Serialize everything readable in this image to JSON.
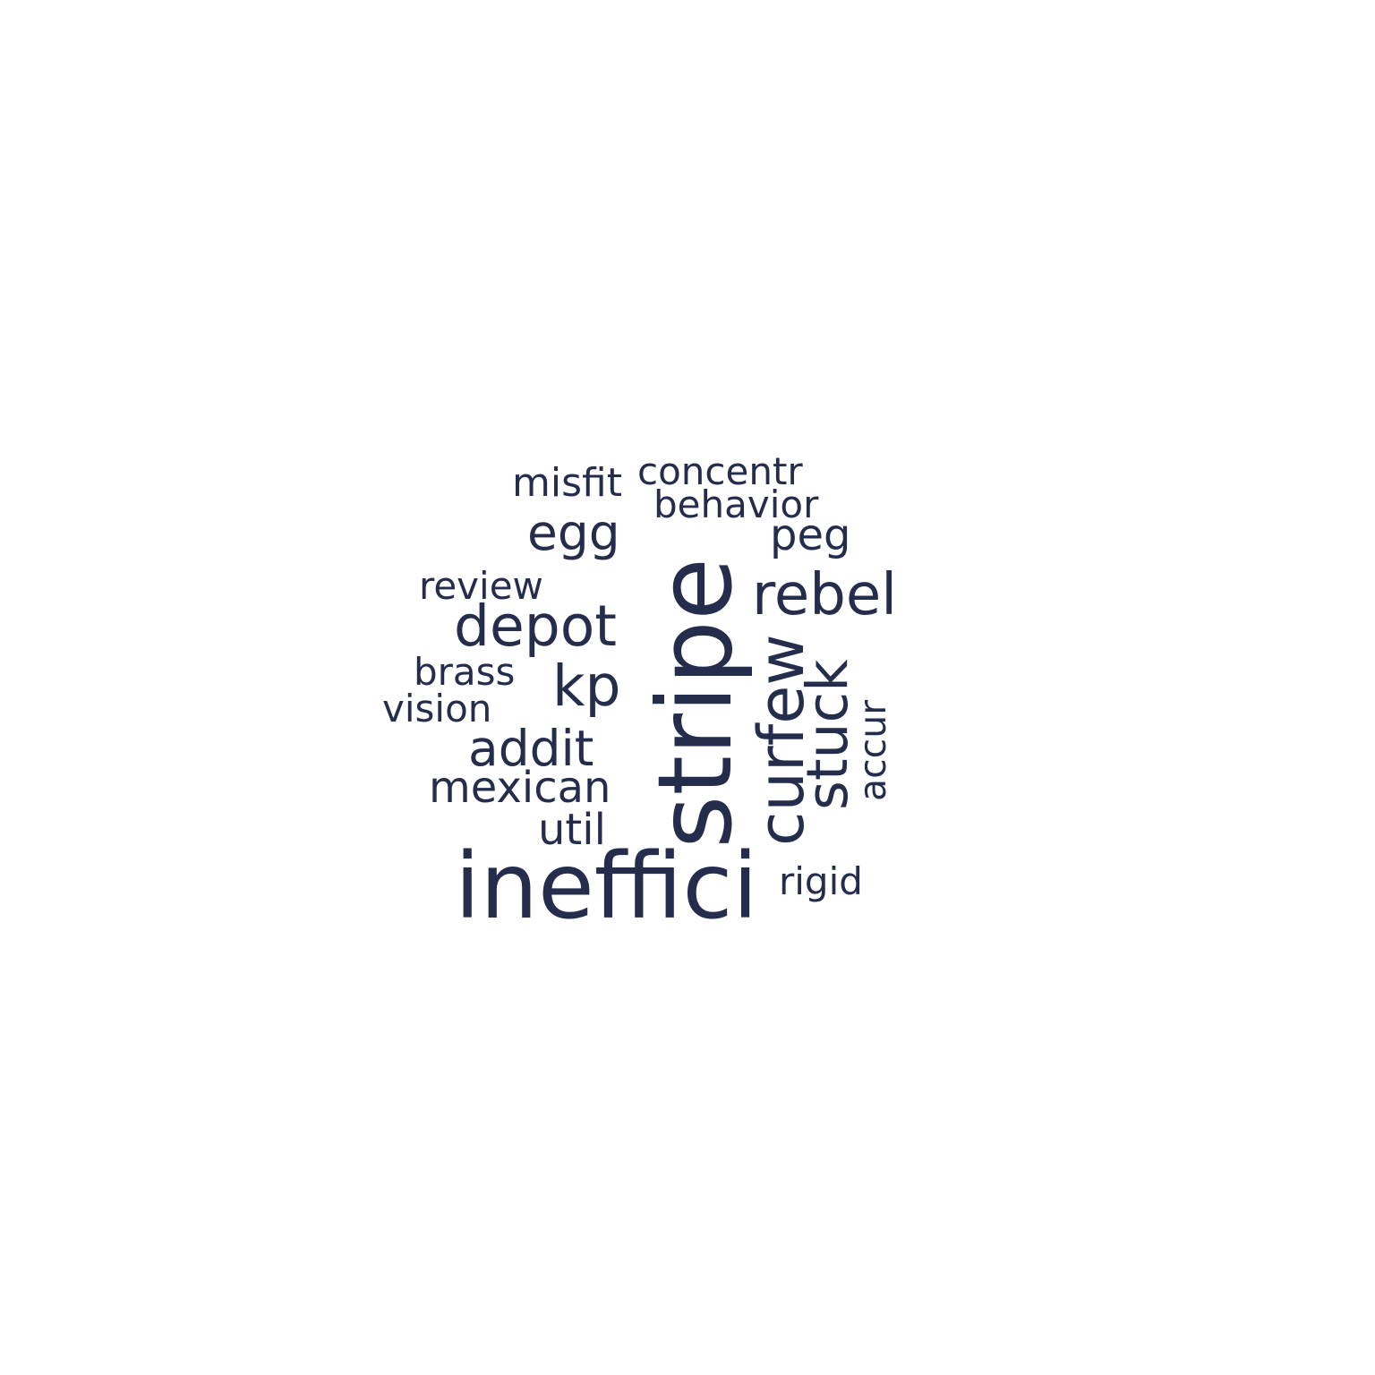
{
  "text_color": "#252d4d",
  "background": "#ffffff",
  "words": [
    {
      "id": "inefficient",
      "text": "ineffici",
      "orientation": "horizontal"
    },
    {
      "id": "stripe",
      "text": "stripe",
      "orientation": "vertical"
    },
    {
      "id": "curfew",
      "text": "curfew",
      "orientation": "vertical"
    },
    {
      "id": "stuck",
      "text": "stuck",
      "orientation": "vertical"
    },
    {
      "id": "accur",
      "text": "accur",
      "orientation": "vertical"
    },
    {
      "id": "rebel",
      "text": "rebel",
      "orientation": "horizontal"
    },
    {
      "id": "depot",
      "text": "depot",
      "orientation": "horizontal"
    },
    {
      "id": "kp",
      "text": "kp",
      "orientation": "horizontal"
    },
    {
      "id": "addit",
      "text": "addit",
      "orientation": "horizontal"
    },
    {
      "id": "egg",
      "text": "egg",
      "orientation": "horizontal"
    },
    {
      "id": "mexican",
      "text": "mexican",
      "orientation": "horizontal"
    },
    {
      "id": "util",
      "text": "util",
      "orientation": "horizontal"
    },
    {
      "id": "peg",
      "text": "peg",
      "orientation": "horizontal"
    },
    {
      "id": "misfit",
      "text": "misfit",
      "orientation": "horizontal"
    },
    {
      "id": "concentr",
      "text": "concentr",
      "orientation": "horizontal"
    },
    {
      "id": "behavior",
      "text": "behavior",
      "orientation": "horizontal"
    },
    {
      "id": "review",
      "text": "review",
      "orientation": "horizontal"
    },
    {
      "id": "brass",
      "text": "brass",
      "orientation": "horizontal"
    },
    {
      "id": "vision",
      "text": "vision",
      "orientation": "horizontal"
    },
    {
      "id": "rigid",
      "text": "rigid",
      "orientation": "horizontal"
    }
  ]
}
